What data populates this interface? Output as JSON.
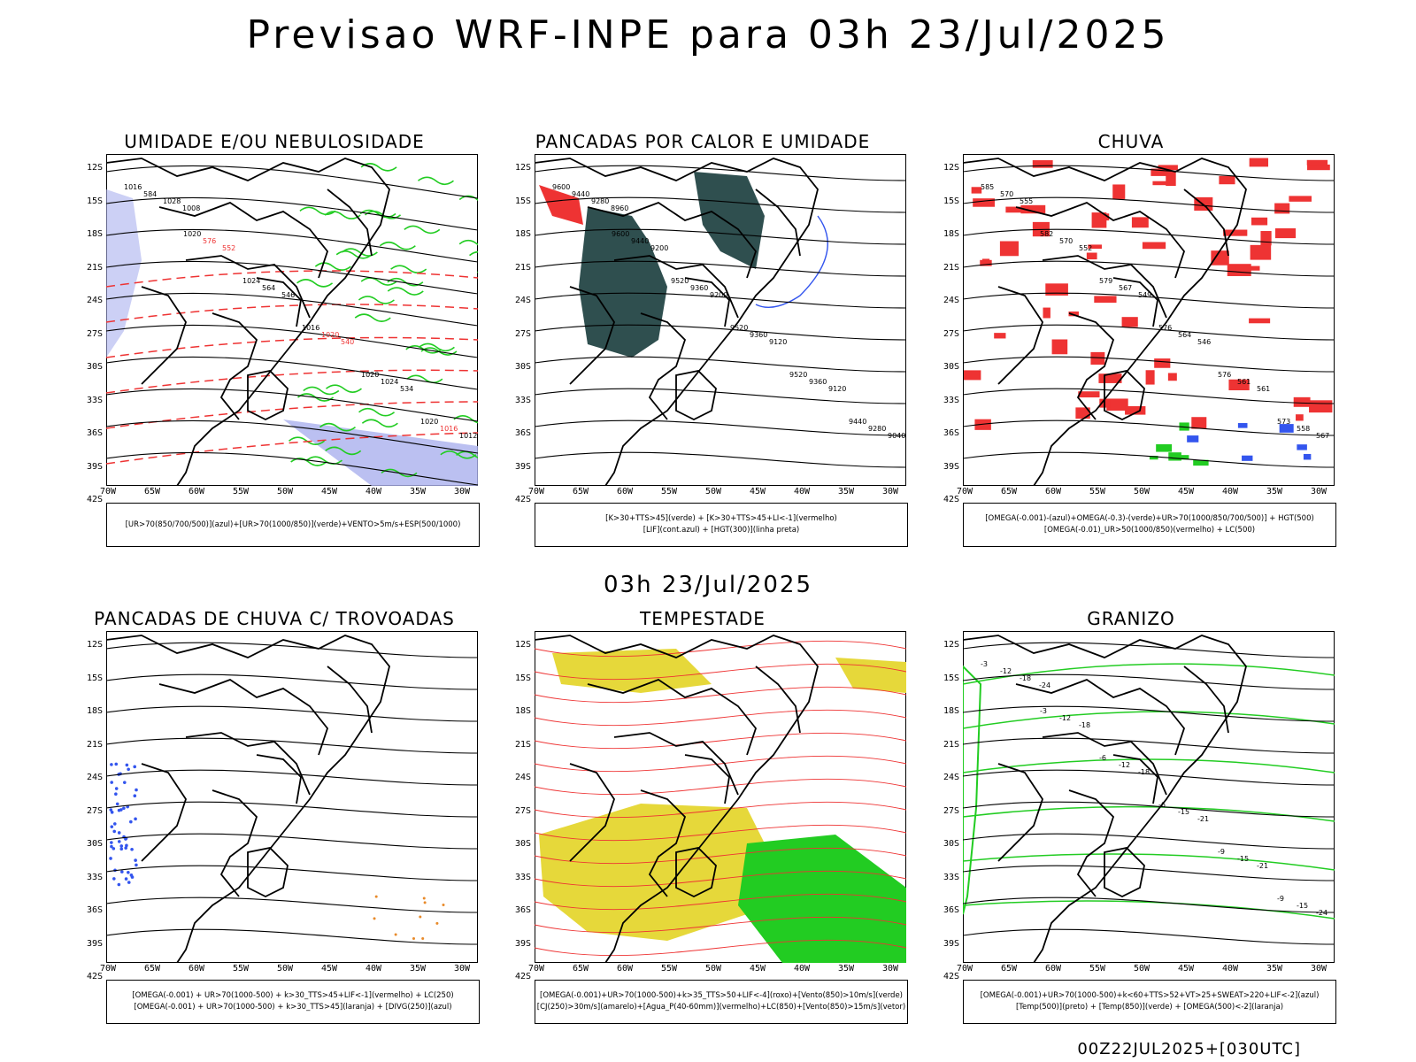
{
  "title": "Previsao WRF-INPE  para 03h 23/Jul/2025",
  "mid_title": "03h 23/Jul/2025",
  "footer": "00Z22JUL2025+[030UTC]",
  "axes": {
    "y_ticks": [
      "12S",
      "15S",
      "18S",
      "21S",
      "24S",
      "27S",
      "30S",
      "33S",
      "36S",
      "39S",
      "42S"
    ],
    "x_ticks": [
      "70W",
      "65W",
      "60W",
      "55W",
      "50W",
      "45W",
      "40W",
      "35W",
      "30W"
    ]
  },
  "colors": {
    "green": "#22cc22",
    "red": "#ee3333",
    "blue": "#3355ee",
    "teal": "#2f4f4f",
    "yellow": "#e6d83a",
    "lavender": "#aab0ee",
    "orange": "#e88a2a"
  },
  "panels": [
    {
      "title": "UMIDADE E/OU NEBULOSIDADE",
      "legend": [
        "[UR>70(850/700/500)](azul)+[UR>70(1000/850)](verde)+VENTO>5m/s+ESP(500/1000)"
      ],
      "labels": [
        "1016",
        "1020",
        "1024",
        "1016",
        "1020",
        "1020",
        "584",
        "576",
        "564",
        "1020",
        "1024",
        "1016",
        "1028",
        "552",
        "546",
        "540",
        "534",
        "1012",
        "1008"
      ]
    },
    {
      "title": "PANCADAS POR CALOR E UMIDADE",
      "legend": [
        "[K>30+TTS>45](verde) + [K>30+TTS>45+LI<-1](vermelho)",
        "[LIF](cont.azul) + [HGT(300)](linha preta)"
      ],
      "labels": [
        "9600",
        "9600",
        "9520",
        "9520",
        "9520",
        "9440",
        "9440",
        "9440",
        "9360",
        "9360",
        "9360",
        "9280",
        "9280",
        "9200",
        "9200",
        "9120",
        "9120",
        "9040",
        "8960"
      ]
    },
    {
      "title": "CHUVA",
      "legend": [
        "[OMEGA(-0.001)-(azul)+OMEGA(-0.3)-(verde)+UR>70(1000/850/700/500)] + HGT(500)",
        "[OMEGA(-0.01)_UR>50(1000/850)(vermelho) + LC(500)"
      ],
      "labels": [
        "585",
        "582",
        "579",
        "576",
        "576",
        "573",
        "570",
        "570",
        "567",
        "564",
        "561",
        "558",
        "555",
        "552",
        "549",
        "546",
        "561",
        "567"
      ]
    },
    {
      "title": "PANCADAS DE CHUVA C/ TROVOADAS",
      "legend": [
        "[OMEGA(-0.001) + UR>70(1000-500) + k>30_TTS>45+LIF<-1](vermelho) + LC(250)",
        "[OMEGA(-0.001) + UR>70(1000-500) + k>30_TTS>45](laranja) + [DIVG(250)](azul)"
      ],
      "labels": []
    },
    {
      "title": "TEMPESTADE",
      "legend": [
        "[OMEGA(-0.001)+UR>70(1000-500)+k>35_TTS>50+LIF<-4](roxo)+[Vento(850)>10m/s](verde)",
        "[CJ(250)>30m/s](amarelo)+[Agua_P(40-60mm)](vermelho)+LC(850)+[Vento(850)>15m/s](vetor)"
      ],
      "labels": []
    },
    {
      "title": "GRANIZO",
      "legend": [
        "[OMEGA(-0.001)+UR>70(1000-500)+k<60+TTS>52+VT>25+SWEAT>220+LIF<-2](azul)",
        "[Temp(500)](preto) + [Temp(850)](verde) + [OMEGA(500)<-2](laranja)"
      ],
      "labels": [
        "-3",
        "-3",
        "-6",
        "-6",
        "-9",
        "-9",
        "-12",
        "-12",
        "-12",
        "-15",
        "-15",
        "-15",
        "-18",
        "-18",
        "-18",
        "-21",
        "-21",
        "-24",
        "-24"
      ]
    }
  ]
}
